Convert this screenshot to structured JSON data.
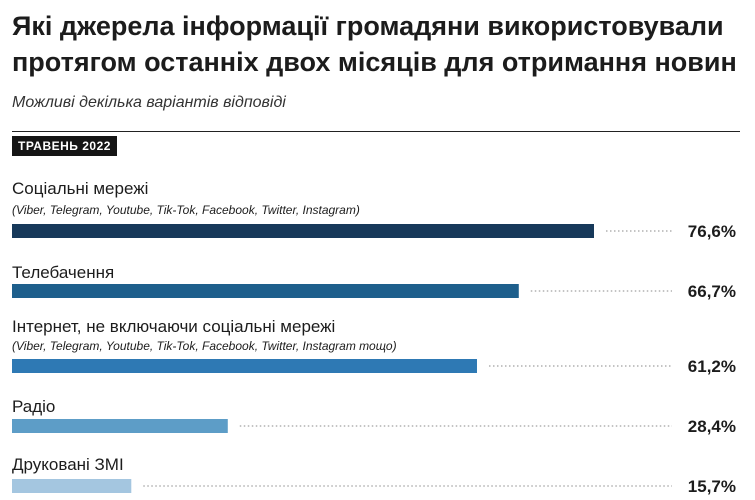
{
  "header": {
    "title": "Які джерела інформації громадяни використовували протягом останніх двох місяців для отримання новин",
    "subtitle": "Можливі декілька варіантів відповіді",
    "period_tag": "ТРАВЕНЬ 2022"
  },
  "chart_data": {
    "type": "bar",
    "orientation": "horizontal",
    "unit": "%",
    "xlim": [
      0,
      100
    ],
    "categories": [
      "Соціальні мережі",
      "Телебачення",
      "Інтернет, не включаючи соціальні мережі",
      "Радіо",
      "Друковані ЗМІ"
    ],
    "notes": [
      "(Viber, Telegram, Youtube, Tik-Tok, Facebook, Twitter, Instagram)",
      "",
      "(Viber, Telegram, Youtube, Tik-Tok, Facebook, Twitter, Instagram тощо)",
      "",
      ""
    ],
    "values": [
      76.6,
      66.7,
      61.2,
      28.4,
      15.7
    ],
    "value_labels": [
      "76,6%",
      "66,7%",
      "61,2%",
      "28,4%",
      "15,7%"
    ],
    "colors": [
      "#17395a",
      "#1e5f8c",
      "#2e79b4",
      "#5d9dc7",
      "#a4c6e0"
    ]
  }
}
